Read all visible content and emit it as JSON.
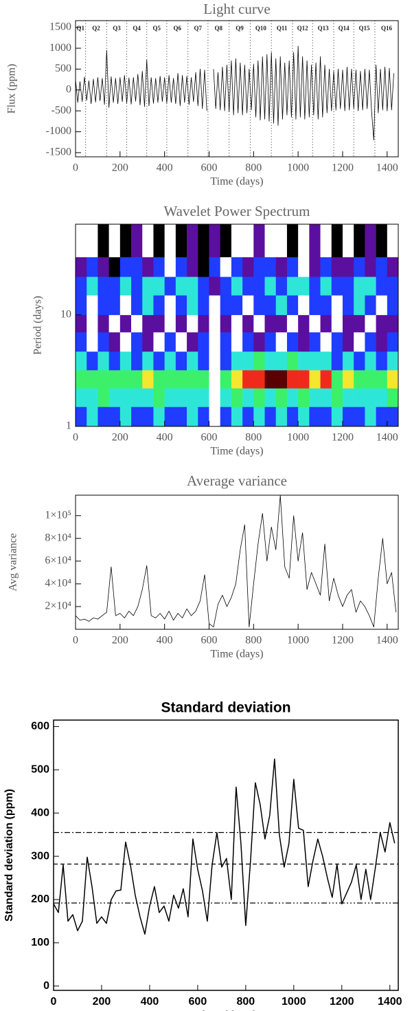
{
  "chart_data": [
    {
      "type": "line",
      "title": "Light curve",
      "xlabel": "Time (days)",
      "ylabel": "Flux (ppm)",
      "color": "#000000",
      "xlim": [
        0,
        1450
      ],
      "ylim": [
        -1600,
        1660
      ],
      "xticks": [
        0,
        200,
        400,
        600,
        800,
        1000,
        1200,
        1400
      ],
      "yticks": [
        -1500,
        -1000,
        -500,
        0,
        500,
        1000,
        1500
      ],
      "quarters": {
        "labels": [
          "Q1",
          "Q2",
          "Q3",
          "Q4",
          "Q5",
          "Q6",
          "Q7",
          "Q8",
          "Q9",
          "Q10",
          "Q11",
          "Q12",
          "Q13",
          "Q14",
          "Q15",
          "Q16"
        ],
        "boundaries": [
          45,
          140,
          230,
          320,
          410,
          505,
          595,
          690,
          785,
          880,
          975,
          1065,
          1160,
          1250,
          1345
        ]
      },
      "x": [
        0,
        10,
        20,
        30,
        40,
        50,
        60,
        70,
        80,
        90,
        100,
        110,
        120,
        130,
        140,
        150,
        160,
        170,
        180,
        190,
        200,
        210,
        220,
        230,
        240,
        250,
        260,
        270,
        280,
        290,
        300,
        310,
        320,
        330,
        340,
        350,
        360,
        370,
        380,
        390,
        400,
        410,
        420,
        430,
        440,
        450,
        460,
        470,
        480,
        490,
        500,
        510,
        520,
        530,
        540,
        550,
        560,
        570,
        580,
        590,
        600,
        610,
        620,
        630,
        640,
        650,
        660,
        670,
        680,
        690,
        700,
        710,
        720,
        730,
        740,
        750,
        760,
        770,
        780,
        790,
        800,
        810,
        820,
        830,
        840,
        850,
        860,
        870,
        880,
        890,
        900,
        910,
        920,
        930,
        940,
        950,
        960,
        970,
        980,
        990,
        1000,
        1010,
        1020,
        1030,
        1040,
        1050,
        1060,
        1070,
        1080,
        1090,
        1100,
        1110,
        1120,
        1130,
        1140,
        1150,
        1160,
        1170,
        1180,
        1190,
        1200,
        1210,
        1220,
        1230,
        1240,
        1250,
        1260,
        1270,
        1280,
        1290,
        1300,
        1310,
        1320,
        1330,
        1340,
        1350,
        1360,
        1370,
        1380,
        1390,
        1400,
        1410,
        1420,
        1430
      ],
      "values": [
        250,
        -300,
        200,
        -280,
        310,
        -250,
        220,
        -330,
        260,
        -290,
        300,
        -260,
        280,
        -350,
        950,
        -420,
        320,
        -300,
        280,
        -330,
        300,
        -280,
        350,
        -310,
        290,
        -340,
        300,
        -270,
        380,
        -360,
        450,
        -400,
        720,
        -380,
        300,
        -320,
        280,
        -300,
        330,
        -280,
        300,
        -310,
        350,
        -300,
        280,
        -330,
        400,
        -380,
        350,
        -300,
        330,
        -350,
        300,
        -280,
        420,
        -380,
        500,
        -450,
        480,
        -500,
        null,
        null,
        500,
        -450,
        420,
        -480,
        550,
        -500,
        600,
        -520,
        700,
        -600,
        750,
        -550,
        650,
        -600,
        600,
        -550,
        500,
        -480,
        620,
        -650,
        700,
        -720,
        800,
        -700,
        850,
        -750,
        900,
        -800,
        750,
        -850,
        800,
        -700,
        650,
        -600,
        700,
        -650,
        900,
        -700,
        1050,
        -650,
        800,
        -700,
        700,
        -650,
        600,
        -600,
        650,
        -700,
        800,
        -650,
        600,
        -550,
        500,
        -500,
        450,
        -480,
        500,
        -450,
        480,
        -500,
        550,
        -480,
        500,
        -450,
        480,
        -500,
        450,
        -480,
        500,
        -450,
        480,
        -500,
        -1200,
        600,
        -550,
        500,
        -480,
        550,
        -500,
        520,
        -480,
        400
      ]
    },
    {
      "type": "heatmap",
      "title": "Wavelet Power Spectrum",
      "xlabel": "Time (days)",
      "ylabel": "Period (days)",
      "ylog": true,
      "xlim": [
        0,
        1450
      ],
      "ylim": [
        1,
        65
      ],
      "xticks": [
        0,
        200,
        400,
        600,
        800,
        1000,
        1200,
        1400
      ],
      "yticks": [
        1,
        10
      ],
      "colorscale": [
        "#ffffff",
        "#000000",
        "#5a0f9e",
        "#1f3cff",
        "#2ee6d8",
        "#3cf06a",
        "#f5e62e",
        "#f02a1a",
        "#5a0000"
      ],
      "x_edges": [
        0,
        50,
        100,
        150,
        200,
        250,
        300,
        350,
        400,
        450,
        500,
        550,
        600,
        650,
        700,
        750,
        800,
        850,
        900,
        950,
        1000,
        1050,
        1100,
        1150,
        1200,
        1250,
        1300,
        1350,
        1400,
        1450
      ],
      "y_edges": [
        1,
        1.5,
        2.2,
        3.2,
        4.7,
        7,
        10,
        15,
        22,
        33,
        65
      ],
      "z": [
        [
          3,
          4,
          3,
          3,
          4,
          3,
          3,
          4,
          3,
          3,
          4,
          3,
          0,
          3,
          4,
          3,
          4,
          3,
          4,
          3,
          4,
          3,
          3,
          4,
          3,
          3,
          4,
          3,
          3
        ],
        [
          4,
          4,
          5,
          4,
          4,
          4,
          4,
          5,
          4,
          4,
          4,
          4,
          0,
          4,
          5,
          4,
          5,
          4,
          5,
          4,
          5,
          4,
          4,
          5,
          4,
          4,
          4,
          4,
          5
        ],
        [
          5,
          5,
          5,
          5,
          5,
          5,
          6,
          5,
          5,
          5,
          5,
          5,
          0,
          5,
          6,
          7,
          7,
          8,
          8,
          7,
          7,
          6,
          7,
          5,
          6,
          5,
          5,
          5,
          6
        ],
        [
          4,
          3,
          4,
          3,
          4,
          3,
          4,
          3,
          4,
          3,
          4,
          3,
          0,
          3,
          4,
          4,
          5,
          4,
          4,
          5,
          4,
          4,
          4,
          3,
          4,
          3,
          4,
          3,
          4
        ],
        [
          3,
          0,
          3,
          2,
          0,
          3,
          2,
          0,
          3,
          0,
          2,
          3,
          0,
          3,
          0,
          3,
          2,
          3,
          0,
          3,
          2,
          3,
          0,
          3,
          2,
          0,
          3,
          2,
          3
        ],
        [
          2,
          0,
          2,
          0,
          2,
          0,
          2,
          2,
          0,
          2,
          0,
          2,
          0,
          2,
          0,
          2,
          0,
          2,
          2,
          0,
          2,
          0,
          2,
          0,
          2,
          2,
          0,
          2,
          2
        ],
        [
          3,
          0,
          3,
          3,
          0,
          3,
          4,
          3,
          0,
          3,
          4,
          3,
          0,
          3,
          3,
          0,
          3,
          3,
          4,
          3,
          0,
          3,
          3,
          0,
          3,
          4,
          3,
          0,
          3
        ],
        [
          3,
          4,
          3,
          3,
          4,
          3,
          4,
          4,
          3,
          4,
          4,
          3,
          2,
          3,
          4,
          3,
          3,
          4,
          3,
          4,
          4,
          3,
          4,
          3,
          3,
          4,
          4,
          3,
          3
        ],
        [
          2,
          3,
          2,
          1,
          3,
          3,
          2,
          3,
          0,
          3,
          2,
          1,
          3,
          0,
          3,
          2,
          3,
          3,
          2,
          3,
          0,
          2,
          3,
          2,
          2,
          3,
          2,
          3,
          2
        ],
        [
          0,
          0,
          1,
          0,
          1,
          2,
          0,
          1,
          0,
          1,
          2,
          1,
          2,
          1,
          0,
          0,
          2,
          0,
          0,
          1,
          0,
          2,
          0,
          1,
          0,
          1,
          2,
          1,
          0
        ]
      ]
    },
    {
      "type": "line",
      "title": "Average variance",
      "xlabel": "Time (days)",
      "ylabel": "Avg variance",
      "color": "#000000",
      "xlim": [
        0,
        1450
      ],
      "ylim": [
        0,
        118000
      ],
      "xticks": [
        0,
        200,
        400,
        600,
        800,
        1000,
        1200,
        1400
      ],
      "yticks": [
        {
          "value": 20000,
          "label": "2×10⁴"
        },
        {
          "value": 40000,
          "label": "4×10⁴"
        },
        {
          "value": 60000,
          "label": "6×10⁴"
        },
        {
          "value": 80000,
          "label": "8×10⁴"
        },
        {
          "value": 100000,
          "label": "1×10⁵"
        }
      ],
      "x": [
        0,
        20,
        40,
        60,
        80,
        100,
        120,
        140,
        160,
        180,
        200,
        220,
        240,
        260,
        280,
        300,
        320,
        340,
        360,
        380,
        400,
        420,
        440,
        460,
        480,
        500,
        520,
        540,
        560,
        580,
        600,
        620,
        640,
        660,
        680,
        700,
        720,
        740,
        760,
        780,
        800,
        820,
        840,
        860,
        880,
        900,
        920,
        940,
        960,
        980,
        1000,
        1020,
        1040,
        1060,
        1080,
        1100,
        1120,
        1140,
        1160,
        1180,
        1200,
        1220,
        1240,
        1260,
        1280,
        1300,
        1320,
        1340,
        1360,
        1380,
        1400,
        1420,
        1440
      ],
      "values": [
        12000,
        8000,
        9000,
        7000,
        10000,
        9000,
        12000,
        15000,
        55000,
        12000,
        14000,
        10000,
        16000,
        12000,
        20000,
        35000,
        56000,
        12000,
        10000,
        14000,
        9000,
        16000,
        8000,
        14000,
        10000,
        18000,
        12000,
        16000,
        25000,
        48000,
        5000,
        2000,
        22000,
        30000,
        20000,
        28000,
        40000,
        70000,
        92000,
        2000,
        40000,
        75000,
        102000,
        60000,
        90000,
        70000,
        118000,
        55000,
        45000,
        100000,
        60000,
        85000,
        35000,
        50000,
        40000,
        30000,
        75000,
        25000,
        45000,
        30000,
        20000,
        30000,
        35000,
        15000,
        25000,
        20000,
        12000,
        2000,
        45000,
        80000,
        40000,
        50000,
        15000
      ]
    },
    {
      "type": "line",
      "title": "Standard deviation",
      "xlabel": "Time (days)",
      "ylabel": "Standard deviation (ppm)",
      "color": "#000000",
      "xlim": [
        0,
        1435
      ],
      "ylim": [
        -10,
        615
      ],
      "xticks": [
        0,
        200,
        400,
        600,
        800,
        1000,
        1200,
        1400
      ],
      "yticks": [
        0,
        100,
        200,
        300,
        400,
        500,
        600
      ],
      "hlines": [
        {
          "value": 355,
          "dash": "dashdot"
        },
        {
          "value": 282,
          "dash": "dashed"
        },
        {
          "value": 192,
          "dash": "dashdotdotdot"
        }
      ],
      "x": [
        0,
        20,
        40,
        60,
        80,
        100,
        120,
        140,
        160,
        180,
        200,
        220,
        240,
        260,
        280,
        300,
        320,
        340,
        360,
        380,
        400,
        420,
        440,
        460,
        480,
        500,
        520,
        540,
        560,
        580,
        600,
        620,
        640,
        660,
        680,
        700,
        720,
        740,
        760,
        780,
        800,
        820,
        840,
        860,
        880,
        900,
        920,
        940,
        960,
        980,
        1000,
        1020,
        1040,
        1060,
        1080,
        1100,
        1120,
        1140,
        1160,
        1180,
        1200,
        1220,
        1240,
        1260,
        1280,
        1300,
        1320,
        1340,
        1360,
        1380,
        1400,
        1420
      ],
      "values": [
        190,
        170,
        280,
        150,
        165,
        128,
        150,
        298,
        230,
        145,
        160,
        145,
        200,
        220,
        222,
        333,
        280,
        210,
        160,
        120,
        185,
        230,
        170,
        185,
        150,
        210,
        180,
        225,
        160,
        340,
        270,
        220,
        150,
        280,
        355,
        275,
        295,
        200,
        460,
        330,
        140,
        290,
        470,
        420,
        340,
        395,
        525,
        350,
        275,
        330,
        478,
        365,
        360,
        230,
        290,
        340,
        300,
        250,
        205,
        282,
        190,
        215,
        240,
        280,
        200,
        270,
        200,
        275,
        355,
        310,
        378,
        330
      ]
    }
  ]
}
